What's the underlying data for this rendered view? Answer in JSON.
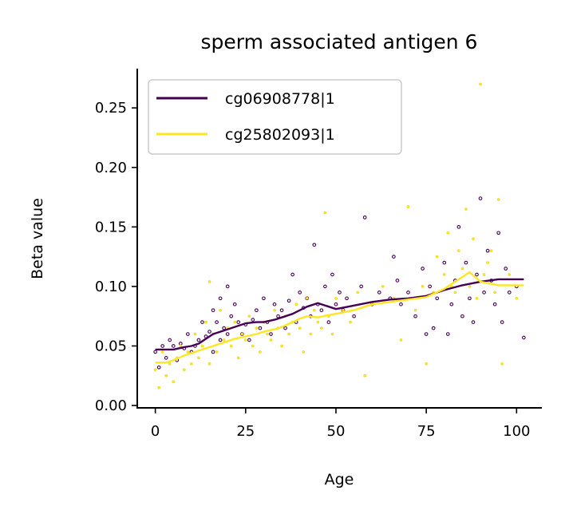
{
  "chart_data": {
    "type": "scatter",
    "title": "sperm associated antigen 6",
    "xlabel": "Age",
    "ylabel": "Beta value",
    "xlim": [
      -5,
      107
    ],
    "ylim": [
      -0.002,
      0.283
    ],
    "xticks": [
      0,
      25,
      50,
      75,
      100
    ],
    "xtick_labels": [
      "0",
      "25",
      "50",
      "75",
      "100"
    ],
    "yticks": [
      0.0,
      0.05,
      0.1,
      0.15,
      0.2,
      0.25
    ],
    "ytick_labels": [
      "0.00",
      "0.05",
      "0.10",
      "0.15",
      "0.20",
      "0.25"
    ],
    "grid": false,
    "legend_position": "top-left",
    "series": [
      {
        "name": "cg06908778|1",
        "color": "#440154",
        "trend": {
          "x": [
            0,
            5,
            8,
            10,
            12,
            14,
            16,
            18,
            20,
            22,
            25,
            28,
            30,
            33,
            35,
            38,
            40,
            42,
            45,
            48,
            50,
            55,
            60,
            65,
            70,
            75,
            80,
            85,
            90,
            95,
            102
          ],
          "y": [
            0.047,
            0.047,
            0.049,
            0.05,
            0.052,
            0.056,
            0.06,
            0.062,
            0.064,
            0.066,
            0.069,
            0.07,
            0.07,
            0.072,
            0.074,
            0.077,
            0.08,
            0.083,
            0.086,
            0.083,
            0.081,
            0.084,
            0.087,
            0.089,
            0.09,
            0.092,
            0.097,
            0.101,
            0.104,
            0.106,
            0.106
          ]
        },
        "points": {
          "x": [
            0,
            1,
            2,
            3,
            4,
            5,
            6,
            7,
            8,
            9,
            10,
            11,
            12,
            13,
            14,
            15,
            16,
            16,
            17,
            18,
            18,
            19,
            20,
            20,
            21,
            22,
            23,
            24,
            25,
            26,
            27,
            28,
            29,
            30,
            31,
            32,
            33,
            34,
            35,
            36,
            37,
            38,
            39,
            40,
            41,
            42,
            43,
            44,
            45,
            46,
            47,
            48,
            49,
            50,
            51,
            52,
            53,
            55,
            57,
            58,
            60,
            62,
            65,
            66,
            67,
            68,
            70,
            72,
            74,
            75,
            76,
            77,
            78,
            80,
            81,
            82,
            83,
            84,
            85,
            86,
            87,
            88,
            89,
            90,
            91,
            92,
            93,
            94,
            95,
            96,
            97,
            98,
            100,
            102
          ],
          "y": [
            0.045,
            0.032,
            0.05,
            0.04,
            0.055,
            0.05,
            0.038,
            0.052,
            0.048,
            0.06,
            0.045,
            0.05,
            0.055,
            0.07,
            0.058,
            0.062,
            0.08,
            0.045,
            0.07,
            0.09,
            0.055,
            0.065,
            0.1,
            0.06,
            0.075,
            0.085,
            0.07,
            0.06,
            0.068,
            0.055,
            0.072,
            0.08,
            0.065,
            0.09,
            0.07,
            0.06,
            0.085,
            0.075,
            0.08,
            0.065,
            0.088,
            0.11,
            0.07,
            0.095,
            0.082,
            0.09,
            0.075,
            0.135,
            0.085,
            0.08,
            0.1,
            0.07,
            0.11,
            0.085,
            0.095,
            0.08,
            0.09,
            0.075,
            0.1,
            0.158,
            0.085,
            0.095,
            0.09,
            0.125,
            0.105,
            0.085,
            0.095,
            0.075,
            0.115,
            0.06,
            0.1,
            0.065,
            0.09,
            0.12,
            0.06,
            0.085,
            0.105,
            0.15,
            0.075,
            0.12,
            0.09,
            0.07,
            0.11,
            0.174,
            0.095,
            0.13,
            0.105,
            0.085,
            0.145,
            0.07,
            0.115,
            0.095,
            0.1,
            0.057
          ]
        }
      },
      {
        "name": "cg25802093|1",
        "color": "#fde725",
        "trend": {
          "x": [
            0,
            3,
            5,
            8,
            10,
            12,
            14,
            16,
            18,
            20,
            22,
            25,
            28,
            30,
            33,
            35,
            38,
            40,
            42,
            45,
            48,
            50,
            55,
            60,
            65,
            70,
            75,
            80,
            83,
            85,
            87,
            90,
            95,
            102
          ],
          "y": [
            0.036,
            0.036,
            0.038,
            0.042,
            0.044,
            0.046,
            0.048,
            0.05,
            0.052,
            0.054,
            0.056,
            0.058,
            0.06,
            0.062,
            0.064,
            0.066,
            0.07,
            0.073,
            0.075,
            0.074,
            0.076,
            0.077,
            0.08,
            0.085,
            0.087,
            0.089,
            0.091,
            0.098,
            0.104,
            0.108,
            0.112,
            0.104,
            0.101,
            0.101
          ]
        },
        "points": {
          "x": [
            0,
            1,
            2,
            3,
            4,
            5,
            6,
            7,
            8,
            9,
            10,
            11,
            12,
            13,
            14,
            15,
            15,
            16,
            17,
            18,
            19,
            20,
            21,
            22,
            23,
            24,
            25,
            26,
            27,
            28,
            29,
            30,
            31,
            32,
            33,
            34,
            35,
            36,
            37,
            38,
            39,
            40,
            41,
            42,
            43,
            44,
            45,
            46,
            47,
            48,
            49,
            50,
            52,
            54,
            56,
            58,
            60,
            63,
            66,
            68,
            70,
            72,
            74,
            75,
            77,
            78,
            80,
            81,
            82,
            83,
            84,
            85,
            86,
            87,
            88,
            89,
            90,
            91,
            92,
            93,
            94,
            95,
            96,
            98,
            100
          ],
          "y": [
            0.03,
            0.015,
            0.045,
            0.025,
            0.035,
            0.02,
            0.04,
            0.05,
            0.03,
            0.045,
            0.035,
            0.06,
            0.04,
            0.05,
            0.07,
            0.104,
            0.035,
            0.06,
            0.045,
            0.08,
            0.055,
            0.065,
            0.05,
            0.07,
            0.04,
            0.06,
            0.055,
            0.075,
            0.05,
            0.065,
            0.045,
            0.07,
            0.06,
            0.055,
            0.08,
            0.065,
            0.05,
            0.075,
            0.06,
            0.07,
            0.085,
            0.065,
            0.045,
            0.09,
            0.06,
            0.08,
            0.07,
            0.065,
            0.162,
            0.075,
            0.06,
            0.09,
            0.08,
            0.07,
            0.095,
            0.025,
            0.085,
            0.1,
            0.09,
            0.055,
            0.167,
            0.08,
            0.1,
            0.035,
            0.095,
            0.125,
            0.11,
            0.145,
            0.1,
            0.095,
            0.13,
            0.115,
            0.165,
            0.1,
            0.14,
            0.09,
            0.27,
            0.11,
            0.12,
            0.13,
            0.095,
            0.173,
            0.035,
            0.11,
            0.09
          ]
        }
      }
    ]
  }
}
